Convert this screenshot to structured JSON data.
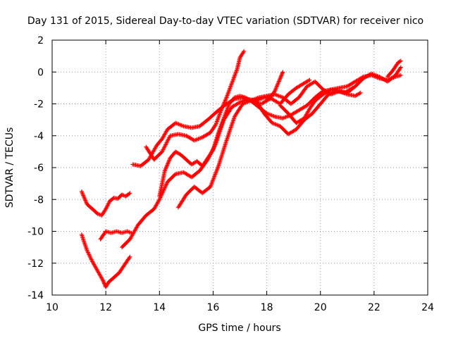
{
  "chart_data": {
    "type": "scatter",
    "title": "Day 131 of 2015, Sidereal Day-to-day VTEC variation (SDTVAR) for receiver nico",
    "xlabel": "GPS time / hours",
    "ylabel": "SDTVAR / TECUs",
    "xlim": [
      10,
      24
    ],
    "ylim": [
      -14,
      2
    ],
    "x_ticks": [
      10,
      12,
      14,
      16,
      18,
      20,
      22,
      24
    ],
    "y_ticks": [
      -14,
      -12,
      -10,
      -8,
      -6,
      -4,
      -2,
      0,
      2
    ],
    "grid": true,
    "marker": "+",
    "color": "#ff0000",
    "series": [
      {
        "x": [
          11.1,
          11.3,
          11.5,
          11.7,
          11.85,
          12.0,
          12.15,
          12.3,
          12.45,
          12.6,
          12.75,
          12.9
        ],
        "y": [
          -7.5,
          -8.3,
          -8.6,
          -8.9,
          -9.0,
          -8.6,
          -8.1,
          -7.9,
          -7.95,
          -7.7,
          -7.8,
          -7.6
        ]
      },
      {
        "x": [
          11.1,
          11.3,
          11.5,
          11.7,
          11.9,
          12.0,
          12.1,
          12.3,
          12.5,
          12.7,
          12.9
        ],
        "y": [
          -10.2,
          -11.2,
          -11.9,
          -12.5,
          -13.1,
          -13.5,
          -13.2,
          -12.9,
          -12.6,
          -12.1,
          -11.6
        ]
      },
      {
        "x": [
          11.8,
          12.0,
          12.2,
          12.4,
          12.6,
          12.8,
          12.95
        ],
        "y": [
          -10.5,
          -10.0,
          -10.1,
          -10.0,
          -10.1,
          -10.0,
          -10.1
        ]
      },
      {
        "x": [
          12.6,
          12.9,
          13.2,
          13.5,
          13.8,
          14.0,
          14.3,
          14.6,
          14.9,
          15.2,
          15.5,
          15.8,
          16.1,
          16.4,
          16.7,
          17.0,
          17.3,
          17.6,
          17.9,
          18.2,
          18.5,
          18.8,
          19.1,
          19.4,
          19.7,
          20.0,
          20.3,
          20.6,
          20.9,
          21.2
        ],
        "y": [
          -11.0,
          -10.5,
          -9.6,
          -9.0,
          -8.6,
          -8.0,
          -6.9,
          -6.4,
          -6.3,
          -6.6,
          -6.2,
          -5.5,
          -4.5,
          -3.0,
          -2.2,
          -1.9,
          -1.7,
          -1.8,
          -2.6,
          -3.2,
          -3.4,
          -3.9,
          -3.6,
          -3.0,
          -2.6,
          -2.0,
          -1.4,
          -1.2,
          -1.3,
          -1.0
        ]
      },
      {
        "x": [
          13.0,
          13.3,
          13.6,
          13.9,
          14.1,
          14.3,
          14.6,
          14.9,
          15.2,
          15.5,
          15.8,
          16.0,
          16.2,
          16.5,
          16.8,
          17.1,
          17.4,
          17.7,
          18.0,
          18.3,
          18.6,
          18.9,
          19.2,
          19.5,
          19.8,
          20.1,
          20.4,
          20.7,
          21.0,
          21.3,
          21.6,
          21.9,
          22.2,
          22.5,
          22.8,
          23.0
        ],
        "y": [
          -5.8,
          -5.9,
          -5.5,
          -4.6,
          -4.2,
          -3.6,
          -3.2,
          -3.4,
          -3.5,
          -3.4,
          -3.0,
          -2.7,
          -2.4,
          -2.0,
          -1.7,
          -1.6,
          -1.8,
          -2.2,
          -2.6,
          -2.8,
          -2.9,
          -2.7,
          -2.4,
          -2.1,
          -1.6,
          -1.2,
          -1.1,
          -1.0,
          -0.9,
          -0.6,
          -0.3,
          -0.2,
          -0.4,
          -0.5,
          -0.3,
          -0.2
        ]
      },
      {
        "x": [
          13.5,
          13.8,
          14.1,
          14.4,
          14.7,
          15.0,
          15.3,
          15.6,
          15.9,
          16.1,
          16.3,
          16.5,
          16.7,
          16.9,
          17.0,
          17.15
        ],
        "y": [
          -4.7,
          -5.5,
          -5.0,
          -4.0,
          -3.9,
          -4.0,
          -4.3,
          -4.1,
          -3.8,
          -3.3,
          -2.4,
          -1.6,
          -0.7,
          0.2,
          0.9,
          1.3
        ]
      },
      {
        "x": [
          14.0,
          14.2,
          14.4,
          14.6,
          14.8,
          15.0,
          15.2,
          15.4,
          15.6,
          15.8,
          16.0,
          16.2,
          16.4,
          16.6,
          16.8,
          17.0,
          17.2,
          17.5,
          17.8,
          18.1,
          18.3,
          18.5,
          18.6
        ],
        "y": [
          -7.8,
          -6.2,
          -5.4,
          -5.0,
          -5.2,
          -5.5,
          -5.8,
          -5.6,
          -5.9,
          -5.4,
          -4.9,
          -3.8,
          -2.9,
          -2.0,
          -1.6,
          -1.5,
          -1.6,
          -1.9,
          -2.0,
          -1.7,
          -1.2,
          -0.4,
          0.0
        ]
      },
      {
        "x": [
          14.7,
          15.0,
          15.3,
          15.6,
          15.9,
          16.2,
          16.5,
          16.8,
          17.1,
          17.4,
          17.7,
          18.0,
          18.3,
          18.6,
          18.9,
          19.2,
          19.5,
          19.8,
          20.1,
          20.4,
          20.7,
          21.0,
          21.3,
          21.6,
          21.9,
          22.2,
          22.5,
          22.8,
          23.0
        ],
        "y": [
          -8.5,
          -7.7,
          -7.2,
          -7.6,
          -7.2,
          -5.9,
          -4.3,
          -2.8,
          -2.0,
          -1.8,
          -1.6,
          -1.5,
          -1.4,
          -1.6,
          -2.0,
          -1.6,
          -0.9,
          -0.6,
          -1.1,
          -1.4,
          -1.2,
          -1.3,
          -0.9,
          -0.4,
          -0.1,
          -0.3,
          -0.6,
          -0.2,
          0.3
        ]
      },
      {
        "x": [
          18.5,
          18.8,
          19.1,
          19.4,
          19.6,
          19.8,
          20.1,
          20.4,
          20.7,
          21.0,
          21.3,
          21.5
        ],
        "y": [
          -2.1,
          -2.6,
          -3.2,
          -2.9,
          -2.3,
          -1.8,
          -1.4,
          -1.1,
          -1.2,
          -1.4,
          -1.5,
          -1.3
        ]
      },
      {
        "x": [
          17.6,
          17.9,
          18.2,
          18.5,
          18.8,
          19.1,
          19.4,
          19.6
        ],
        "y": [
          -1.8,
          -1.6,
          -1.7,
          -2.0,
          -1.4,
          -1.0,
          -0.7,
          -0.5
        ]
      },
      {
        "x": [
          22.5,
          22.7,
          22.9,
          23.0
        ],
        "y": [
          -0.3,
          0.1,
          0.6,
          0.7
        ]
      }
    ]
  }
}
